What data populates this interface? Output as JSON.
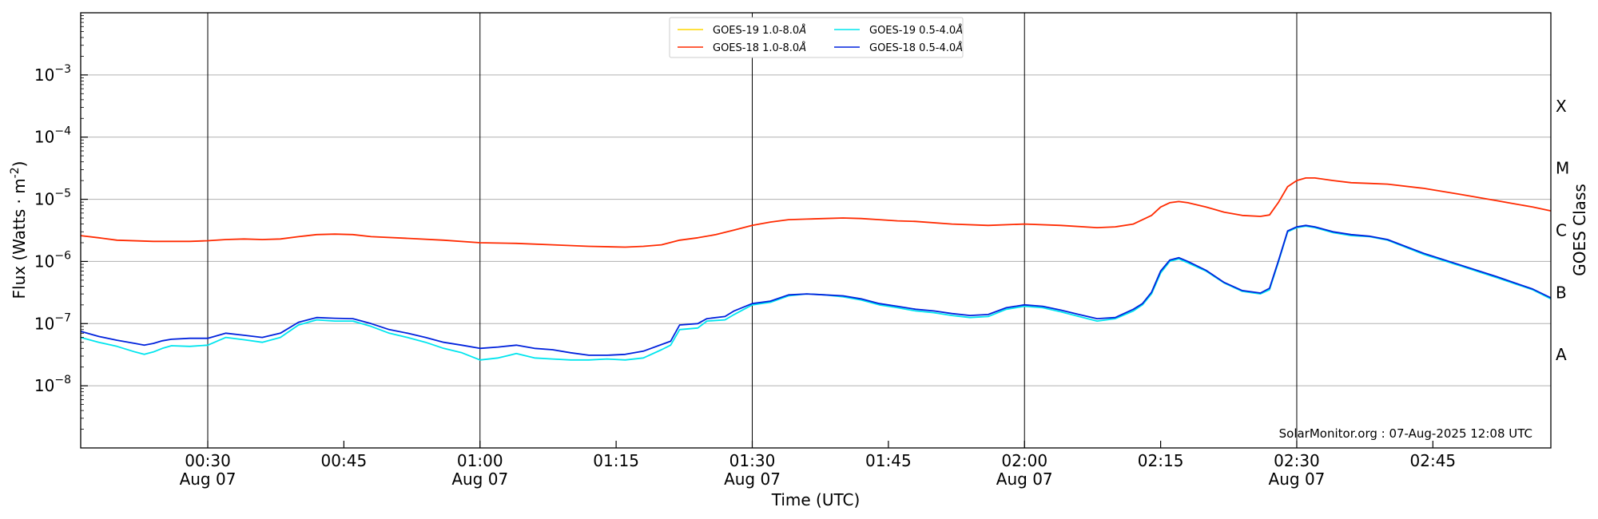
{
  "chart_data": {
    "type": "line",
    "xlabel": "Time (UTC)",
    "ylabel": "Flux (Watts · m",
    "ylabel_sup": "-2",
    "ylabel_close": ")",
    "right_label": "GOES Class",
    "credit": "SolarMonitor.org : 07-Aug-2025 12:08 UTC",
    "xlim": [
      "00:16",
      "02:58"
    ],
    "ylim": [
      1e-09,
      0.01
    ],
    "y_scale": "log",
    "grid": "horizontal at decades; vertical at half-hours",
    "legend_placement": "top-center",
    "x_ticks": [
      {
        "t": "00:30",
        "label": "00:30",
        "date": "Aug 07"
      },
      {
        "t": "00:45",
        "label": "00:45",
        "date": ""
      },
      {
        "t": "01:00",
        "label": "01:00",
        "date": "Aug 07"
      },
      {
        "t": "01:15",
        "label": "01:15",
        "date": ""
      },
      {
        "t": "01:30",
        "label": "01:30",
        "date": "Aug 07"
      },
      {
        "t": "01:45",
        "label": "01:45",
        "date": ""
      },
      {
        "t": "02:00",
        "label": "02:00",
        "date": "Aug 07"
      },
      {
        "t": "02:15",
        "label": "02:15",
        "date": ""
      },
      {
        "t": "02:30",
        "label": "02:30",
        "date": "Aug 07"
      },
      {
        "t": "02:45",
        "label": "02:45",
        "date": ""
      }
    ],
    "y_ticks": [
      {
        "v": 1e-08,
        "base": "10",
        "exp": "−8"
      },
      {
        "v": 1e-07,
        "base": "10",
        "exp": "−7"
      },
      {
        "v": 1e-06,
        "base": "10",
        "exp": "−6"
      },
      {
        "v": 1e-05,
        "base": "10",
        "exp": "−5"
      },
      {
        "v": 0.0001,
        "base": "10",
        "exp": "−4"
      },
      {
        "v": 0.001,
        "base": "10",
        "exp": "−3"
      }
    ],
    "goes_classes": [
      {
        "label": "A",
        "v": 3.16e-08
      },
      {
        "label": "B",
        "v": 3.16e-07
      },
      {
        "label": "C",
        "v": 3.16e-06
      },
      {
        "label": "M",
        "v": 3.16e-05
      },
      {
        "label": "X",
        "v": 0.000316
      }
    ],
    "legend_columns": 2,
    "series": [
      {
        "name": "GOES-19 1.0-8.0",
        "unit": "Å",
        "color": "#ffd700",
        "points": []
      },
      {
        "name": "GOES-18 1.0-8.0",
        "unit": "Å",
        "color": "#ff2a00",
        "points": [
          [
            "00:16",
            2.6e-06
          ],
          [
            "00:18",
            2.4e-06
          ],
          [
            "00:20",
            2.2e-06
          ],
          [
            "00:24",
            2.1e-06
          ],
          [
            "00:28",
            2.1e-06
          ],
          [
            "00:30",
            2.15e-06
          ],
          [
            "00:32",
            2.25e-06
          ],
          [
            "00:34",
            2.3e-06
          ],
          [
            "00:36",
            2.25e-06
          ],
          [
            "00:38",
            2.3e-06
          ],
          [
            "00:40",
            2.5e-06
          ],
          [
            "00:42",
            2.7e-06
          ],
          [
            "00:44",
            2.75e-06
          ],
          [
            "00:46",
            2.7e-06
          ],
          [
            "00:48",
            2.5e-06
          ],
          [
            "00:52",
            2.35e-06
          ],
          [
            "00:56",
            2.2e-06
          ],
          [
            "01:00",
            2e-06
          ],
          [
            "01:04",
            1.95e-06
          ],
          [
            "01:08",
            1.85e-06
          ],
          [
            "01:12",
            1.75e-06
          ],
          [
            "01:16",
            1.7e-06
          ],
          [
            "01:18",
            1.75e-06
          ],
          [
            "01:20",
            1.85e-06
          ],
          [
            "01:22",
            2.2e-06
          ],
          [
            "01:24",
            2.4e-06
          ],
          [
            "01:26",
            2.7e-06
          ],
          [
            "01:28",
            3.2e-06
          ],
          [
            "01:30",
            3.8e-06
          ],
          [
            "01:32",
            4.3e-06
          ],
          [
            "01:34",
            4.7e-06
          ],
          [
            "01:36",
            4.8e-06
          ],
          [
            "01:38",
            4.9e-06
          ],
          [
            "01:40",
            5e-06
          ],
          [
            "01:42",
            4.9e-06
          ],
          [
            "01:44",
            4.7e-06
          ],
          [
            "01:46",
            4.5e-06
          ],
          [
            "01:48",
            4.4e-06
          ],
          [
            "01:52",
            4e-06
          ],
          [
            "01:56",
            3.8e-06
          ],
          [
            "02:00",
            4e-06
          ],
          [
            "02:04",
            3.8e-06
          ],
          [
            "02:08",
            3.5e-06
          ],
          [
            "02:10",
            3.6e-06
          ],
          [
            "02:12",
            4e-06
          ],
          [
            "02:14",
            5.5e-06
          ],
          [
            "02:15",
            7.5e-06
          ],
          [
            "02:16",
            8.8e-06
          ],
          [
            "02:17",
            9.2e-06
          ],
          [
            "02:18",
            8.8e-06
          ],
          [
            "02:20",
            7.5e-06
          ],
          [
            "02:22",
            6.2e-06
          ],
          [
            "02:24",
            5.5e-06
          ],
          [
            "02:26",
            5.3e-06
          ],
          [
            "02:27",
            5.6e-06
          ],
          [
            "02:28",
            9e-06
          ],
          [
            "02:29",
            1.6e-05
          ],
          [
            "02:30",
            2e-05
          ],
          [
            "02:31",
            2.2e-05
          ],
          [
            "02:32",
            2.2e-05
          ],
          [
            "02:34",
            2e-05
          ],
          [
            "02:36",
            1.85e-05
          ],
          [
            "02:38",
            1.8e-05
          ],
          [
            "02:40",
            1.75e-05
          ],
          [
            "02:44",
            1.5e-05
          ],
          [
            "02:48",
            1.2e-05
          ],
          [
            "02:52",
            9.5e-06
          ],
          [
            "02:56",
            7.5e-06
          ],
          [
            "02:58",
            6.5e-06
          ]
        ]
      },
      {
        "name": "GOES-19 0.5-4.0",
        "unit": "Å",
        "color": "#00e5ee",
        "points": [
          [
            "00:16",
            6e-08
          ],
          [
            "00:18",
            5e-08
          ],
          [
            "00:20",
            4.3e-08
          ],
          [
            "00:22",
            3.5e-08
          ],
          [
            "00:23",
            3.2e-08
          ],
          [
            "00:24",
            3.5e-08
          ],
          [
            "00:25",
            4e-08
          ],
          [
            "00:26",
            4.4e-08
          ],
          [
            "00:28",
            4.3e-08
          ],
          [
            "00:30",
            4.5e-08
          ],
          [
            "00:32",
            6e-08
          ],
          [
            "00:34",
            5.5e-08
          ],
          [
            "00:36",
            5e-08
          ],
          [
            "00:38",
            6e-08
          ],
          [
            "00:40",
            9.5e-08
          ],
          [
            "00:42",
            1.15e-07
          ],
          [
            "00:44",
            1.1e-07
          ],
          [
            "00:46",
            1.1e-07
          ],
          [
            "00:48",
            9e-08
          ],
          [
            "00:50",
            7e-08
          ],
          [
            "00:52",
            6e-08
          ],
          [
            "00:54",
            5e-08
          ],
          [
            "00:56",
            4e-08
          ],
          [
            "00:58",
            3.4e-08
          ],
          [
            "01:00",
            2.6e-08
          ],
          [
            "01:02",
            2.8e-08
          ],
          [
            "01:04",
            3.3e-08
          ],
          [
            "01:06",
            2.8e-08
          ],
          [
            "01:08",
            2.7e-08
          ],
          [
            "01:10",
            2.6e-08
          ],
          [
            "01:12",
            2.6e-08
          ],
          [
            "01:14",
            2.7e-08
          ],
          [
            "01:16",
            2.6e-08
          ],
          [
            "01:18",
            2.8e-08
          ],
          [
            "01:20",
            3.8e-08
          ],
          [
            "01:21",
            4.5e-08
          ],
          [
            "01:22",
            8e-08
          ],
          [
            "01:24",
            8.5e-08
          ],
          [
            "01:25",
            1.1e-07
          ],
          [
            "01:27",
            1.15e-07
          ],
          [
            "01:28",
            1.4e-07
          ],
          [
            "01:30",
            2e-07
          ],
          [
            "01:32",
            2.2e-07
          ],
          [
            "01:34",
            2.8e-07
          ],
          [
            "01:36",
            3e-07
          ],
          [
            "01:38",
            2.9e-07
          ],
          [
            "01:40",
            2.7e-07
          ],
          [
            "01:42",
            2.4e-07
          ],
          [
            "01:44",
            2e-07
          ],
          [
            "01:46",
            1.8e-07
          ],
          [
            "01:48",
            1.6e-07
          ],
          [
            "01:50",
            1.5e-07
          ],
          [
            "01:52",
            1.35e-07
          ],
          [
            "01:54",
            1.25e-07
          ],
          [
            "01:56",
            1.3e-07
          ],
          [
            "01:58",
            1.7e-07
          ],
          [
            "02:00",
            1.9e-07
          ],
          [
            "02:02",
            1.8e-07
          ],
          [
            "02:04",
            1.55e-07
          ],
          [
            "02:06",
            1.3e-07
          ],
          [
            "02:08",
            1.1e-07
          ],
          [
            "02:10",
            1.2e-07
          ],
          [
            "02:12",
            1.6e-07
          ],
          [
            "02:13",
            2e-07
          ],
          [
            "02:14",
            3e-07
          ],
          [
            "02:15",
            6.5e-07
          ],
          [
            "02:16",
            1e-06
          ],
          [
            "02:17",
            1.1e-06
          ],
          [
            "02:18",
            9.5e-07
          ],
          [
            "02:20",
            7e-07
          ],
          [
            "02:22",
            4.5e-07
          ],
          [
            "02:24",
            3.3e-07
          ],
          [
            "02:26",
            3e-07
          ],
          [
            "02:27",
            3.5e-07
          ],
          [
            "02:28",
            1e-06
          ],
          [
            "02:29",
            3e-06
          ],
          [
            "02:30",
            3.5e-06
          ],
          [
            "02:31",
            3.7e-06
          ],
          [
            "02:32",
            3.5e-06
          ],
          [
            "02:34",
            2.9e-06
          ],
          [
            "02:36",
            2.6e-06
          ],
          [
            "02:38",
            2.5e-06
          ],
          [
            "02:40",
            2.2e-06
          ],
          [
            "02:44",
            1.3e-06
          ],
          [
            "02:48",
            8.5e-07
          ],
          [
            "02:52",
            5.5e-07
          ],
          [
            "02:56",
            3.5e-07
          ],
          [
            "02:58",
            2.5e-07
          ]
        ]
      },
      {
        "name": "GOES-18 0.5-4.0",
        "unit": "Å",
        "color": "#0022dd",
        "points": [
          [
            "00:16",
            7.5e-08
          ],
          [
            "00:18",
            6.2e-08
          ],
          [
            "00:20",
            5.4e-08
          ],
          [
            "00:22",
            4.8e-08
          ],
          [
            "00:23",
            4.5e-08
          ],
          [
            "00:24",
            4.8e-08
          ],
          [
            "00:25",
            5.3e-08
          ],
          [
            "00:26",
            5.6e-08
          ],
          [
            "00:28",
            5.8e-08
          ],
          [
            "00:30",
            5.8e-08
          ],
          [
            "00:32",
            7e-08
          ],
          [
            "00:34",
            6.5e-08
          ],
          [
            "00:36",
            6e-08
          ],
          [
            "00:38",
            7e-08
          ],
          [
            "00:40",
            1.05e-07
          ],
          [
            "00:42",
            1.25e-07
          ],
          [
            "00:44",
            1.22e-07
          ],
          [
            "00:46",
            1.2e-07
          ],
          [
            "00:48",
            1e-07
          ],
          [
            "00:50",
            8e-08
          ],
          [
            "00:52",
            7e-08
          ],
          [
            "00:54",
            6e-08
          ],
          [
            "00:56",
            5e-08
          ],
          [
            "00:58",
            4.5e-08
          ],
          [
            "01:00",
            4e-08
          ],
          [
            "01:02",
            4.2e-08
          ],
          [
            "01:04",
            4.5e-08
          ],
          [
            "01:06",
            4e-08
          ],
          [
            "01:08",
            3.8e-08
          ],
          [
            "01:10",
            3.4e-08
          ],
          [
            "01:12",
            3.1e-08
          ],
          [
            "01:14",
            3.1e-08
          ],
          [
            "01:16",
            3.2e-08
          ],
          [
            "01:18",
            3.6e-08
          ],
          [
            "01:20",
            4.6e-08
          ],
          [
            "01:21",
            5.2e-08
          ],
          [
            "01:22",
            9.5e-08
          ],
          [
            "01:24",
            1e-07
          ],
          [
            "01:25",
            1.2e-07
          ],
          [
            "01:27",
            1.3e-07
          ],
          [
            "01:28",
            1.6e-07
          ],
          [
            "01:30",
            2.1e-07
          ],
          [
            "01:32",
            2.3e-07
          ],
          [
            "01:34",
            2.9e-07
          ],
          [
            "01:36",
            3e-07
          ],
          [
            "01:38",
            2.9e-07
          ],
          [
            "01:40",
            2.8e-07
          ],
          [
            "01:42",
            2.5e-07
          ],
          [
            "01:44",
            2.1e-07
          ],
          [
            "01:46",
            1.9e-07
          ],
          [
            "01:48",
            1.7e-07
          ],
          [
            "01:50",
            1.6e-07
          ],
          [
            "01:52",
            1.45e-07
          ],
          [
            "01:54",
            1.35e-07
          ],
          [
            "01:56",
            1.4e-07
          ],
          [
            "01:58",
            1.8e-07
          ],
          [
            "02:00",
            2e-07
          ],
          [
            "02:02",
            1.9e-07
          ],
          [
            "02:04",
            1.65e-07
          ],
          [
            "02:06",
            1.4e-07
          ],
          [
            "02:08",
            1.2e-07
          ],
          [
            "02:10",
            1.25e-07
          ],
          [
            "02:12",
            1.7e-07
          ],
          [
            "02:13",
            2.1e-07
          ],
          [
            "02:14",
            3.2e-07
          ],
          [
            "02:15",
            7e-07
          ],
          [
            "02:16",
            1.05e-06
          ],
          [
            "02:17",
            1.15e-06
          ],
          [
            "02:18",
            1e-06
          ],
          [
            "02:20",
            7.2e-07
          ],
          [
            "02:22",
            4.6e-07
          ],
          [
            "02:24",
            3.4e-07
          ],
          [
            "02:26",
            3.1e-07
          ],
          [
            "02:27",
            3.7e-07
          ],
          [
            "02:28",
            1.05e-06
          ],
          [
            "02:29",
            3.1e-06
          ],
          [
            "02:30",
            3.6e-06
          ],
          [
            "02:31",
            3.8e-06
          ],
          [
            "02:32",
            3.6e-06
          ],
          [
            "02:34",
            3e-06
          ],
          [
            "02:36",
            2.7e-06
          ],
          [
            "02:38",
            2.55e-06
          ],
          [
            "02:40",
            2.25e-06
          ],
          [
            "02:44",
            1.35e-06
          ],
          [
            "02:48",
            8.8e-07
          ],
          [
            "02:52",
            5.7e-07
          ],
          [
            "02:56",
            3.6e-07
          ],
          [
            "02:58",
            2.6e-07
          ]
        ]
      }
    ]
  }
}
